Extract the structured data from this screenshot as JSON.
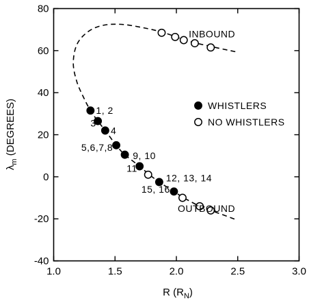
{
  "chart_data": {
    "type": "scatter",
    "xlabel": "R (R",
    "xlabel_subscript": "N",
    "xlabel_suffix": ")",
    "ylabel": "λ",
    "ylabel_subscript": "m",
    "ylabel_suffix": " (DEGREES)",
    "xlim": [
      1.0,
      3.0
    ],
    "ylim": [
      -40,
      80
    ],
    "x_ticks": [
      1.0,
      1.5,
      2.0,
      2.5,
      3.0
    ],
    "x_tick_labels": [
      "1.0",
      "1.5",
      "2.0",
      "2.5",
      "3.0"
    ],
    "y_ticks": [
      -40,
      -20,
      0,
      20,
      40,
      60,
      80
    ],
    "y_tick_labels": [
      "-40",
      "-20",
      "0",
      "20",
      "40",
      "60",
      "80"
    ],
    "grid": false,
    "legend_position": "right",
    "series": [
      {
        "name": "WHISTLERS",
        "marker": "filled-circle",
        "color": "#000000",
        "points": [
          {
            "x": 1.3,
            "y": 31.5
          },
          {
            "x": 1.36,
            "y": 26.5
          },
          {
            "x": 1.42,
            "y": 22.0
          },
          {
            "x": 1.51,
            "y": 15.0
          },
          {
            "x": 1.58,
            "y": 10.5
          },
          {
            "x": 1.7,
            "y": 5.0
          },
          {
            "x": 1.86,
            "y": -2.5
          },
          {
            "x": 1.98,
            "y": -7.0
          }
        ]
      },
      {
        "name": "NO WHISTLERS",
        "marker": "open-circle",
        "color": "#000000",
        "points": [
          {
            "x": 1.88,
            "y": 68.5
          },
          {
            "x": 1.99,
            "y": 66.5
          },
          {
            "x": 2.06,
            "y": 65.0
          },
          {
            "x": 2.15,
            "y": 63.5
          },
          {
            "x": 2.28,
            "y": 61.5
          },
          {
            "x": 1.77,
            "y": 1.0
          },
          {
            "x": 2.05,
            "y": -10.0
          },
          {
            "x": 2.19,
            "y": -14.0
          },
          {
            "x": 2.28,
            "y": -16.0
          }
        ]
      }
    ],
    "trajectory": [
      {
        "x": 2.48,
        "y": 59.5
      },
      {
        "x": 2.28,
        "y": 62.0
      },
      {
        "x": 2.1,
        "y": 64.5
      },
      {
        "x": 1.9,
        "y": 68.5
      },
      {
        "x": 1.72,
        "y": 71.0
      },
      {
        "x": 1.55,
        "y": 72.5
      },
      {
        "x": 1.4,
        "y": 72.0
      },
      {
        "x": 1.28,
        "y": 69.0
      },
      {
        "x": 1.19,
        "y": 63.0
      },
      {
        "x": 1.16,
        "y": 54.0
      },
      {
        "x": 1.19,
        "y": 45.0
      },
      {
        "x": 1.25,
        "y": 37.0
      },
      {
        "x": 1.3,
        "y": 31.5
      },
      {
        "x": 1.36,
        "y": 26.5
      },
      {
        "x": 1.42,
        "y": 22.0
      },
      {
        "x": 1.51,
        "y": 15.0
      },
      {
        "x": 1.58,
        "y": 10.5
      },
      {
        "x": 1.7,
        "y": 5.0
      },
      {
        "x": 1.78,
        "y": 1.0
      },
      {
        "x": 1.86,
        "y": -2.5
      },
      {
        "x": 1.98,
        "y": -7.0
      },
      {
        "x": 2.06,
        "y": -10.0
      },
      {
        "x": 2.19,
        "y": -14.0
      },
      {
        "x": 2.28,
        "y": -16.0
      },
      {
        "x": 2.4,
        "y": -18.5
      },
      {
        "x": 2.49,
        "y": -20.5
      }
    ],
    "annotations": [
      {
        "text": "INBOUND",
        "x": 2.48,
        "y": 68
      },
      {
        "text": "OUTBOUND",
        "x": 2.48,
        "y": -15
      },
      {
        "text": "1, 2",
        "x": 1.345,
        "y": 31.5
      },
      {
        "text": "3",
        "x": 1.3,
        "y": 25.5
      },
      {
        "text": "4",
        "x": 1.465,
        "y": 22.0
      },
      {
        "text": "5,6,7,8",
        "x": 1.225,
        "y": 14.0
      },
      {
        "text": "9, 10",
        "x": 1.645,
        "y": 10.0
      },
      {
        "text": "11",
        "x": 1.595,
        "y": 4.0
      },
      {
        "text": "12, 13, 14",
        "x": 1.915,
        "y": -0.5
      },
      {
        "text": "15, 16",
        "x": 1.715,
        "y": -6.0
      }
    ]
  }
}
